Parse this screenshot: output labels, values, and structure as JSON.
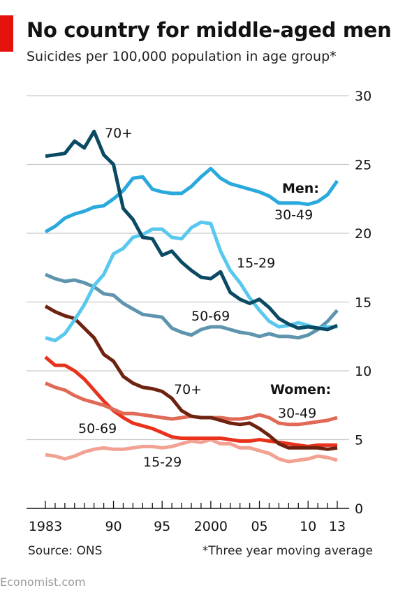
{
  "header": {
    "title": "No country for middle-aged men",
    "subtitle": "Suicides per 100,000 population in age group*"
  },
  "footer": {
    "source": "Source: ONS",
    "note": "*Three year moving average",
    "brand": "Economist.com"
  },
  "chart_data": {
    "type": "line",
    "title": "No country for middle-aged men",
    "subtitle": "Suicides per 100,000 population in age group*",
    "ylim": [
      0,
      30
    ],
    "xlim": [
      1983,
      2013
    ],
    "y_ticks": [
      0,
      5,
      10,
      15,
      20,
      25,
      30
    ],
    "x_ticks": [
      {
        "value": 1983,
        "label": "1983"
      },
      {
        "value": 1990,
        "label": "90"
      },
      {
        "value": 1995,
        "label": "95"
      },
      {
        "value": 2000,
        "label": "2000"
      },
      {
        "value": 2005,
        "label": "05"
      },
      {
        "value": 2010,
        "label": "10"
      },
      {
        "value": 2013,
        "label": "13"
      }
    ],
    "grid": true,
    "x": [
      1983,
      1984,
      1985,
      1986,
      1987,
      1988,
      1989,
      1990,
      1991,
      1992,
      1993,
      1994,
      1995,
      1996,
      1997,
      1998,
      1999,
      2000,
      2001,
      2002,
      2003,
      2004,
      2005,
      2006,
      2007,
      2008,
      2009,
      2010,
      2011,
      2012,
      2013
    ],
    "group_labels": {
      "men": "Men:",
      "women": "Women:"
    },
    "series": [
      {
        "name": "70+",
        "group": "men",
        "color": "#0b4a63",
        "values": [
          25.6,
          25.7,
          25.8,
          26.7,
          26.2,
          27.4,
          25.7,
          25.0,
          21.8,
          21.0,
          19.7,
          19.6,
          18.4,
          18.7,
          17.9,
          17.3,
          16.8,
          16.7,
          17.2,
          15.7,
          15.2,
          14.9,
          15.2,
          14.6,
          13.8,
          13.4,
          13.1,
          13.2,
          13.1,
          13.0,
          13.3
        ]
      },
      {
        "name": "30-49",
        "group": "men",
        "color": "#2aa9dd",
        "values": [
          20.1,
          20.5,
          21.1,
          21.4,
          21.6,
          21.9,
          22.0,
          22.5,
          23.1,
          24.0,
          24.1,
          23.2,
          23.0,
          22.9,
          22.9,
          23.4,
          24.1,
          24.7,
          24.0,
          23.6,
          23.4,
          23.2,
          23.0,
          22.7,
          22.2,
          22.2,
          22.2,
          22.1,
          22.3,
          22.8,
          23.8
        ]
      },
      {
        "name": "15-29",
        "group": "men",
        "color": "#58c8ef",
        "values": [
          12.4,
          12.2,
          12.7,
          13.7,
          14.8,
          16.2,
          17.0,
          18.5,
          18.9,
          19.7,
          19.9,
          20.3,
          20.3,
          19.7,
          19.6,
          20.4,
          20.8,
          20.7,
          18.7,
          17.3,
          16.4,
          15.3,
          14.4,
          13.6,
          13.2,
          13.3,
          13.5,
          13.3,
          13.1,
          13.2,
          13.2
        ]
      },
      {
        "name": "50-69",
        "group": "men",
        "color": "#5e94ae",
        "values": [
          17.0,
          16.7,
          16.5,
          16.6,
          16.4,
          16.1,
          15.6,
          15.5,
          14.9,
          14.5,
          14.1,
          14.0,
          13.9,
          13.1,
          12.8,
          12.6,
          13.0,
          13.2,
          13.2,
          13.0,
          12.8,
          12.7,
          12.5,
          12.7,
          12.5,
          12.5,
          12.4,
          12.6,
          13.0,
          13.6,
          14.4
        ]
      },
      {
        "name": "70+",
        "group": "women",
        "color": "#6e2210",
        "values": [
          14.7,
          14.3,
          14.0,
          13.8,
          13.1,
          12.4,
          11.2,
          10.7,
          9.6,
          9.1,
          8.8,
          8.7,
          8.5,
          8.0,
          7.1,
          6.7,
          6.6,
          6.6,
          6.4,
          6.2,
          6.1,
          6.2,
          5.8,
          5.3,
          4.7,
          4.4,
          4.4,
          4.4,
          4.4,
          4.3,
          4.4
        ]
      },
      {
        "name": "30-49",
        "group": "women",
        "color": "#e06a56",
        "values": [
          9.1,
          8.8,
          8.6,
          8.2,
          7.9,
          7.7,
          7.5,
          7.2,
          6.9,
          6.9,
          6.8,
          6.7,
          6.6,
          6.5,
          6.6,
          6.7,
          6.6,
          6.6,
          6.6,
          6.5,
          6.5,
          6.6,
          6.8,
          6.6,
          6.2,
          6.1,
          6.1,
          6.2,
          6.3,
          6.4,
          6.6
        ]
      },
      {
        "name": "50-69",
        "group": "women",
        "color": "#e8321c",
        "values": [
          11.0,
          10.4,
          10.4,
          10.0,
          9.4,
          8.6,
          7.8,
          7.1,
          6.6,
          6.2,
          6.0,
          5.8,
          5.5,
          5.2,
          5.1,
          5.1,
          5.1,
          5.1,
          5.1,
          5.0,
          4.9,
          4.9,
          5.0,
          4.9,
          4.8,
          4.7,
          4.6,
          4.5,
          4.6,
          4.6,
          4.6
        ]
      },
      {
        "name": "15-29",
        "group": "women",
        "color": "#f2a192",
        "values": [
          3.9,
          3.8,
          3.6,
          3.8,
          4.1,
          4.3,
          4.4,
          4.3,
          4.3,
          4.4,
          4.5,
          4.5,
          4.4,
          4.5,
          4.7,
          4.9,
          4.8,
          5.0,
          4.7,
          4.7,
          4.4,
          4.4,
          4.2,
          4.0,
          3.6,
          3.4,
          3.5,
          3.6,
          3.8,
          3.7,
          3.5
        ]
      }
    ]
  }
}
